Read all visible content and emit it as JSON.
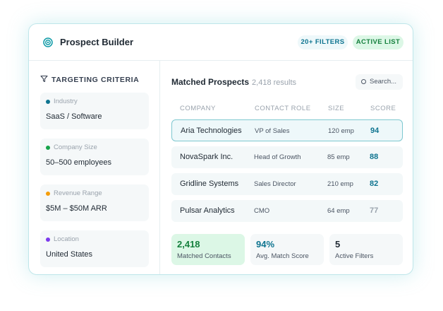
{
  "header": {
    "title": "Prospect Builder",
    "badges": [
      "20+ FILTERS",
      "ACTIVE LIST"
    ]
  },
  "criteria": {
    "title": "TARGETING CRITERIA",
    "items": [
      {
        "label": "Industry",
        "value": "SaaS / Software",
        "color": "#0e7490"
      },
      {
        "label": "Company Size",
        "value": "50–500 employees",
        "color": "#16a34a"
      },
      {
        "label": "Revenue Range",
        "value": "$5M – $50M ARR",
        "color": "#f59e0b"
      },
      {
        "label": "Location",
        "value": "United States",
        "color": "#7c3aed"
      }
    ]
  },
  "prospects": {
    "title": "Matched Prospects",
    "count": "2,418 results",
    "search": "Search...",
    "columns": [
      "COMPANY",
      "CONTACT ROLE",
      "SIZE",
      "SCORE"
    ],
    "rows": [
      [
        "Aria Technologies",
        "VP of Sales",
        "120 emp",
        "94"
      ],
      [
        "NovaSpark Inc.",
        "Head of Growth",
        "85 emp",
        "88"
      ],
      [
        "Gridline Systems",
        "Sales Director",
        "210 emp",
        "82"
      ],
      [
        "Pulsar Analytics",
        "CMO",
        "64 emp",
        "77"
      ]
    ],
    "score_colors": [
      "#0e7490",
      "#0e7490",
      "#0e7490",
      "#9aa3ad"
    ],
    "selected_row": 0
  },
  "stats": [
    {
      "value": "2,418",
      "label": "Matched Contacts",
      "color": "#15803d",
      "background": "#dcf7e6"
    },
    {
      "value": "94%",
      "label": "Avg. Match Score",
      "color": "#0e7490",
      "background": "#f5f8f9"
    },
    {
      "value": "5",
      "label": "Active Filters",
      "color": "#1f2933",
      "background": "#f5f8f9"
    }
  ]
}
